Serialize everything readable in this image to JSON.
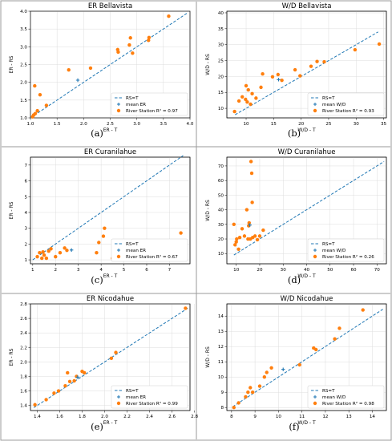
{
  "chart_data": [
    {
      "type": "scatter",
      "title": "ER Bellavista",
      "xlabel": "ER - T",
      "ylabel": "ER - RS",
      "tag": "(a)",
      "xlim": [
        1.0,
        4.0
      ],
      "ylim": [
        1.0,
        4.0
      ],
      "xticks": [
        "1.0",
        "1.5",
        "2.0",
        "2.5",
        "3.0",
        "3.5",
        "4.0"
      ],
      "yticks": [
        "1.0",
        "1.5",
        "2.0",
        "2.5",
        "3.0",
        "3.5",
        "4.0"
      ],
      "grid": true,
      "legend_position": "lower-right",
      "legend": {
        "line": "RS=T",
        "mean": "mean ER",
        "station": "River Station R² = 0.97"
      },
      "line": [
        [
          1.0,
          1.0
        ],
        [
          3.95,
          3.95
        ]
      ],
      "mean": [
        1.89,
        2.06
      ],
      "points": [
        [
          1.04,
          1.03
        ],
        [
          1.06,
          1.08
        ],
        [
          1.08,
          1.9
        ],
        [
          1.09,
          1.12
        ],
        [
          1.13,
          1.2
        ],
        [
          1.18,
          1.65
        ],
        [
          1.3,
          1.35
        ],
        [
          1.72,
          2.35
        ],
        [
          2.13,
          2.4
        ],
        [
          2.64,
          2.92
        ],
        [
          2.65,
          2.85
        ],
        [
          2.86,
          3.05
        ],
        [
          2.88,
          3.25
        ],
        [
          2.92,
          2.82
        ],
        [
          3.22,
          3.18
        ],
        [
          3.23,
          3.26
        ],
        [
          3.6,
          3.86
        ]
      ]
    },
    {
      "type": "scatter",
      "title": "W/D Bellavista",
      "xlabel": "W/D - T",
      "ylabel": "W/D - RS",
      "tag": "(b)",
      "xlim": [
        6.5,
        35.5
      ],
      "ylim": [
        7.0,
        40.5
      ],
      "xticks": [
        "10",
        "15",
        "20",
        "25",
        "30",
        "35"
      ],
      "yticks": [
        "10",
        "15",
        "20",
        "25",
        "30",
        "35",
        "40"
      ],
      "grid": true,
      "legend_position": "lower-right",
      "legend": {
        "line": "RS=T",
        "mean": "mean W/D",
        "station": "River Station R² = 0.93"
      },
      "line": [
        [
          8.0,
          8.0
        ],
        [
          34.0,
          34.0
        ]
      ],
      "mean": [
        15.9,
        19.0
      ],
      "points": [
        [
          7.9,
          9.0
        ],
        [
          8.7,
          12.3
        ],
        [
          9.3,
          13.6
        ],
        [
          9.9,
          12.8
        ],
        [
          10.0,
          17.1
        ],
        [
          10.2,
          12.0
        ],
        [
          10.4,
          15.8
        ],
        [
          10.8,
          11.3
        ],
        [
          11.1,
          14.6
        ],
        [
          11.8,
          13.2
        ],
        [
          12.7,
          16.6
        ],
        [
          13.0,
          20.8
        ],
        [
          14.8,
          19.9
        ],
        [
          15.8,
          20.6
        ],
        [
          16.5,
          18.8
        ],
        [
          18.9,
          22.1
        ],
        [
          19.8,
          20.2
        ],
        [
          21.8,
          23.2
        ],
        [
          22.9,
          24.7
        ],
        [
          24.2,
          24.6
        ],
        [
          29.8,
          28.4
        ],
        [
          34.2,
          30.2
        ]
      ]
    },
    {
      "type": "scatter",
      "title": "ER Curanilahue",
      "xlabel": "ER - T",
      "ylabel": "ER - RS",
      "tag": "(c)",
      "xlim": [
        0.9,
        7.9
      ],
      "ylim": [
        0.75,
        7.5
      ],
      "xticks": [
        "1",
        "2",
        "3",
        "4",
        "5",
        "6",
        "7"
      ],
      "yticks": [
        "1",
        "2",
        "3",
        "4",
        "5",
        "6",
        "7"
      ],
      "grid": true,
      "legend_position": "lower-right",
      "legend": {
        "line": "RS=T",
        "mean": "mean ER",
        "station": "River Station R² = 0.67"
      },
      "line": [
        [
          1.0,
          1.0
        ],
        [
          7.6,
          7.6
        ]
      ],
      "mean": [
        2.7,
        1.62
      ],
      "points": [
        [
          1.2,
          1.2
        ],
        [
          1.3,
          1.45
        ],
        [
          1.4,
          1.1
        ],
        [
          1.45,
          1.5
        ],
        [
          1.5,
          1.3
        ],
        [
          1.6,
          1.1
        ],
        [
          1.7,
          1.55
        ],
        [
          1.8,
          1.7
        ],
        [
          2.0,
          1.2
        ],
        [
          2.2,
          1.45
        ],
        [
          2.4,
          1.75
        ],
        [
          2.5,
          1.6
        ],
        [
          3.8,
          1.45
        ],
        [
          3.9,
          2.1
        ],
        [
          4.1,
          2.5
        ],
        [
          4.15,
          3.0
        ],
        [
          4.5,
          1.1
        ],
        [
          7.5,
          2.7
        ]
      ]
    },
    {
      "type": "scatter",
      "title": "W/D Curanilahue",
      "xlabel": "W/D - T",
      "ylabel": "W/D - RS",
      "tag": "(d)",
      "xlim": [
        6.0,
        74.0
      ],
      "ylim": [
        3.0,
        76.0
      ],
      "xticks": [
        "10",
        "20",
        "30",
        "40",
        "50",
        "60",
        "70"
      ],
      "yticks": [
        "10",
        "20",
        "30",
        "40",
        "50",
        "60",
        "70"
      ],
      "grid": true,
      "legend_position": "lower-right",
      "legend": {
        "line": "RS=T",
        "mean": "mean W/D",
        "station": "River Station R² = 0.26"
      },
      "line": [
        [
          9.0,
          9.0
        ],
        [
          73.0,
          73.0
        ]
      ],
      "mean": [
        15.8,
        29.5
      ],
      "points": [
        [
          9.0,
          30.0
        ],
        [
          9.5,
          16.0
        ],
        [
          10.0,
          18.0
        ],
        [
          10.2,
          20.0
        ],
        [
          11.0,
          13.0
        ],
        [
          11.5,
          21.0
        ],
        [
          12.5,
          27.0
        ],
        [
          13.5,
          22.0
        ],
        [
          14.5,
          40.0
        ],
        [
          15.0,
          20.0
        ],
        [
          15.3,
          29.0
        ],
        [
          15.5,
          31.0
        ],
        [
          16.0,
          20.0
        ],
        [
          16.3,
          73.0
        ],
        [
          16.6,
          65.0
        ],
        [
          16.8,
          45.0
        ],
        [
          17.0,
          21.0
        ],
        [
          18.0,
          22.0
        ],
        [
          19.0,
          19.5
        ],
        [
          20.0,
          22.0
        ],
        [
          21.5,
          26.0
        ]
      ]
    },
    {
      "type": "scatter",
      "title": "ER Nicodahue",
      "xlabel": "ER - T",
      "ylabel": "ER - RS",
      "tag": "(e)",
      "xlim": [
        1.34,
        2.76
      ],
      "ylim": [
        1.33,
        2.8
      ],
      "xticks": [
        "1.4",
        "1.6",
        "1.8",
        "2.0",
        "2.2",
        "2.4",
        "2.6",
        "2.8"
      ],
      "yticks": [
        "1.4",
        "1.6",
        "1.8",
        "2.0",
        "2.2",
        "2.4",
        "2.6",
        "2.8"
      ],
      "grid": true,
      "legend_position": "lower-right",
      "legend": {
        "line": "RS=T",
        "mean": "mean ER",
        "station": "River Station R² = 0.99"
      },
      "line": [
        [
          1.37,
          1.37
        ],
        [
          2.74,
          2.74
        ]
      ],
      "mean": [
        1.76,
        1.79
      ],
      "points": [
        [
          1.38,
          1.41
        ],
        [
          1.48,
          1.48
        ],
        [
          1.55,
          1.57
        ],
        [
          1.59,
          1.6
        ],
        [
          1.65,
          1.67
        ],
        [
          1.67,
          1.85
        ],
        [
          1.69,
          1.73
        ],
        [
          1.73,
          1.74
        ],
        [
          1.75,
          1.8
        ],
        [
          1.8,
          1.87
        ],
        [
          1.82,
          1.85
        ],
        [
          2.06,
          2.05
        ],
        [
          2.1,
          2.13
        ],
        [
          2.72,
          2.74
        ]
      ]
    },
    {
      "type": "scatter",
      "title": "W/D Nicodahue",
      "xlabel": "W/D - T",
      "ylabel": "W/D - RS",
      "tag": "(f)",
      "xlim": [
        7.8,
        14.6
      ],
      "ylim": [
        7.8,
        14.8
      ],
      "xticks": [
        "8",
        "9",
        "10",
        "11",
        "12",
        "13",
        "14"
      ],
      "yticks": [
        "8",
        "9",
        "10",
        "11",
        "12",
        "13",
        "14"
      ],
      "grid": true,
      "legend_position": "lower-right",
      "legend": {
        "line": "RS=T",
        "mean": "mean W/D",
        "station": "River Station R² = 0.98"
      },
      "line": [
        [
          8.05,
          8.05
        ],
        [
          14.45,
          14.45
        ]
      ],
      "mean": [
        10.2,
        10.5
      ],
      "points": [
        [
          8.1,
          8.0
        ],
        [
          8.3,
          8.3
        ],
        [
          8.6,
          8.7
        ],
        [
          8.7,
          9.0
        ],
        [
          8.8,
          9.3
        ],
        [
          8.9,
          9.0
        ],
        [
          9.2,
          9.4
        ],
        [
          9.4,
          10.0
        ],
        [
          9.5,
          10.3
        ],
        [
          9.7,
          10.6
        ],
        [
          10.9,
          10.8
        ],
        [
          11.5,
          11.9
        ],
        [
          11.6,
          11.8
        ],
        [
          12.4,
          12.5
        ],
        [
          12.6,
          13.2
        ],
        [
          13.6,
          14.4
        ]
      ]
    }
  ],
  "colors": {
    "line": "#1f77b4",
    "mean": "#1f77b4",
    "points": "#ff7f0e",
    "grid": "#dcdcdc"
  }
}
